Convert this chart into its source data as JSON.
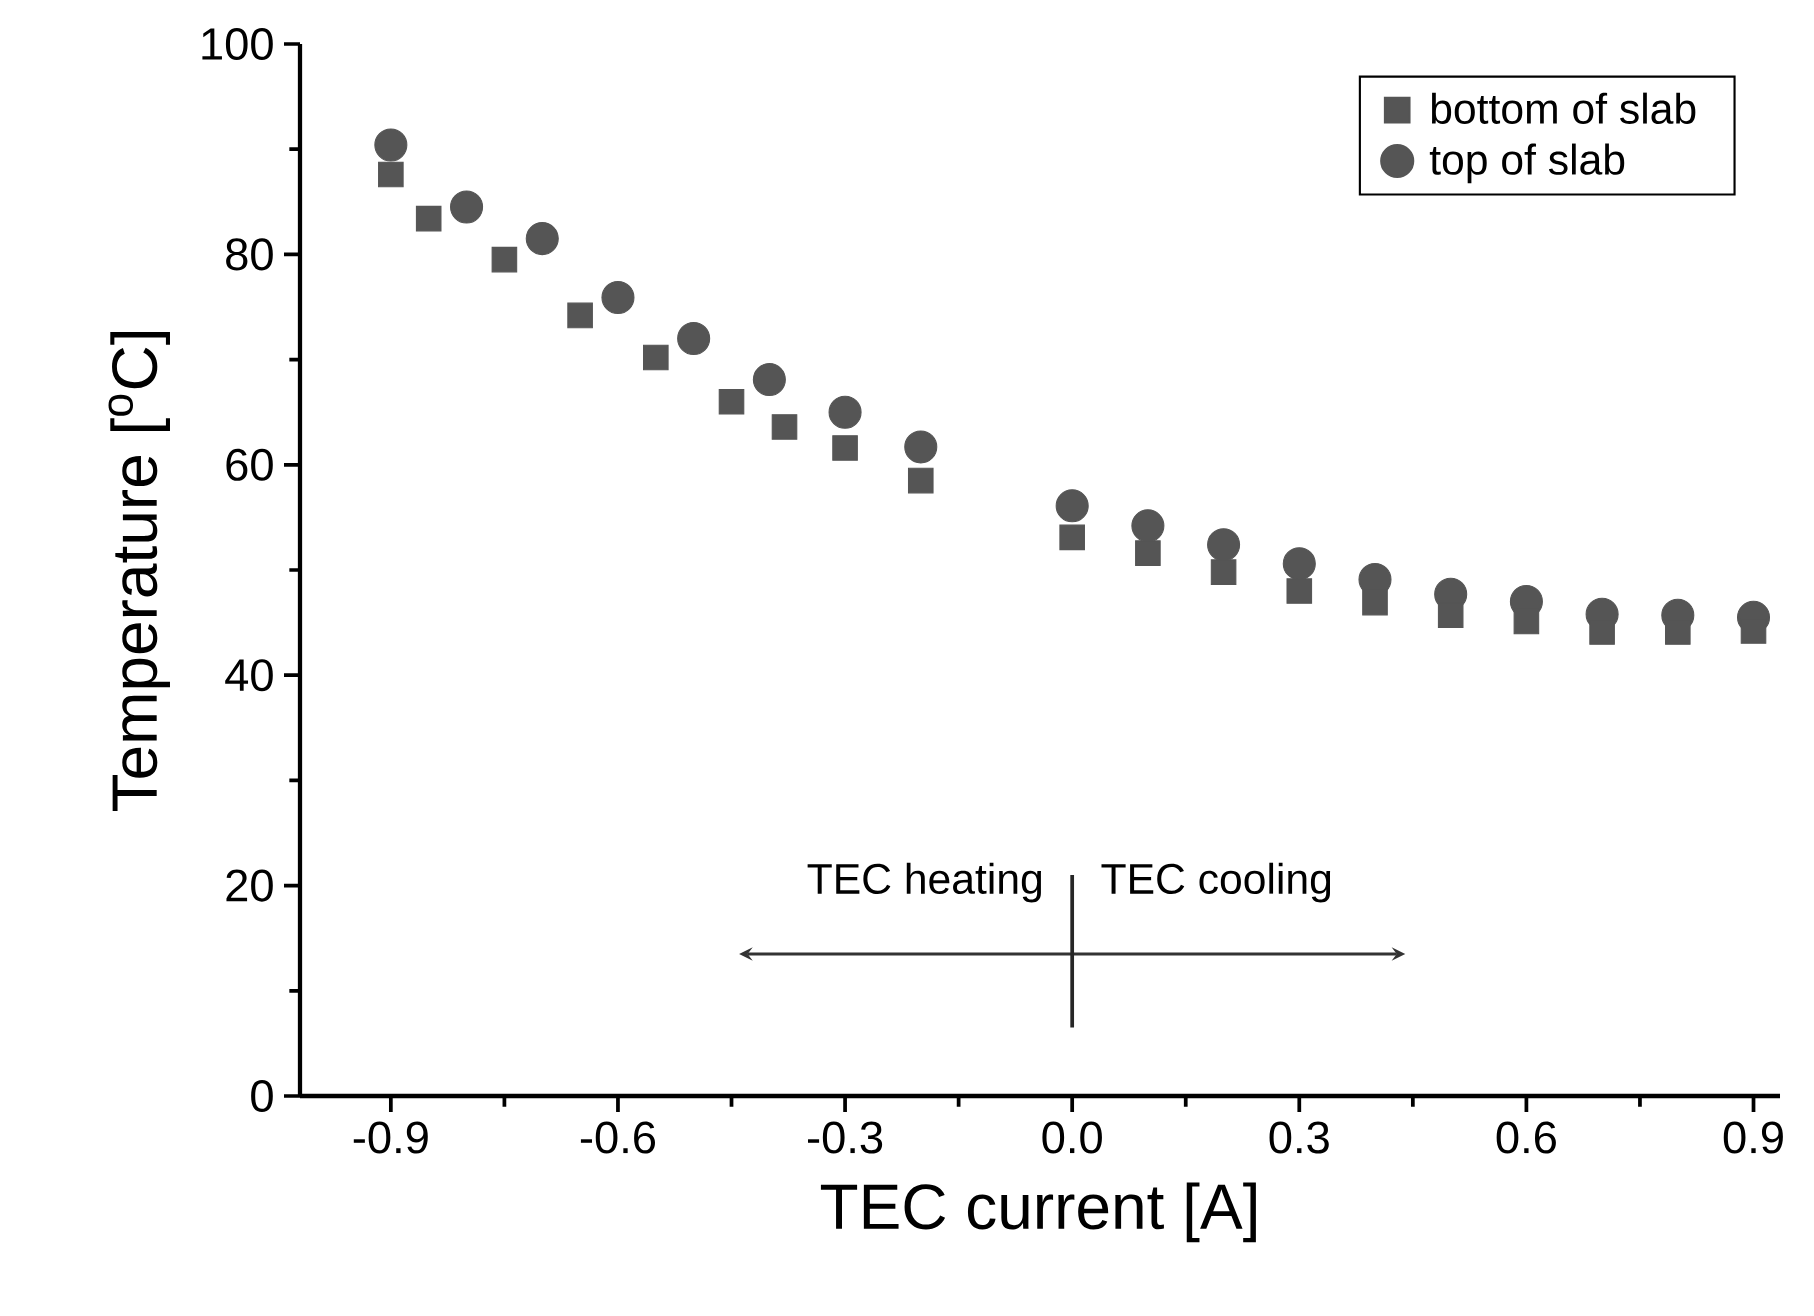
{
  "chart_data": {
    "type": "scatter",
    "xlabel": "TEC current [A]",
    "ylabel": "Temperature [$^{o}$C]",
    "series": [
      {
        "name": "bottom of slab",
        "color": "#555555",
        "marker": "square",
        "x": [
          -0.9,
          -0.85,
          -0.75,
          -0.65,
          -0.55,
          -0.45,
          -0.38,
          -0.3,
          -0.2,
          0.0,
          0.1,
          0.2,
          0.3,
          0.4,
          0.5,
          0.6,
          0.7,
          0.8,
          0.9
        ],
        "values": [
          87.6,
          83.4,
          79.5,
          74.2,
          70.2,
          66.0,
          63.6,
          61.6,
          58.5,
          53.1,
          51.6,
          49.8,
          48.0,
          46.9,
          45.7,
          45.1,
          44.1,
          44.1,
          44.2
        ]
      },
      {
        "name": "top of slab",
        "color": "#555555",
        "marker": "circle",
        "x": [
          -0.9,
          -0.8,
          -0.7,
          -0.6,
          -0.5,
          -0.4,
          -0.3,
          -0.2,
          0.0,
          0.1,
          0.2,
          0.3,
          0.4,
          0.5,
          0.6,
          0.7,
          0.8,
          0.9
        ],
        "values": [
          90.4,
          84.5,
          81.5,
          75.9,
          72.0,
          68.1,
          65.0,
          61.7,
          56.1,
          54.2,
          52.4,
          50.6,
          49.1,
          47.7,
          47.0,
          45.8,
          45.7,
          45.5
        ]
      }
    ],
    "annotations": [
      "TEC heating",
      "TEC cooling"
    ],
    "xlim": [
      -1.02,
      0.935
    ],
    "ylim": [
      0,
      100
    ],
    "xticks": [
      {
        "value": -0.9,
        "label": "-0.9"
      },
      {
        "value": -0.6,
        "label": "-0.6"
      },
      {
        "value": -0.3,
        "label": "-0.3"
      },
      {
        "value": 0.0,
        "label": "0.0"
      },
      {
        "value": 0.3,
        "label": "0.3"
      },
      {
        "value": 0.6,
        "label": "0.6"
      },
      {
        "value": 0.9,
        "label": "0.9"
      }
    ],
    "yticks": [
      0,
      20,
      40,
      60,
      80,
      100
    ],
    "grid": false,
    "legend": "top right"
  }
}
